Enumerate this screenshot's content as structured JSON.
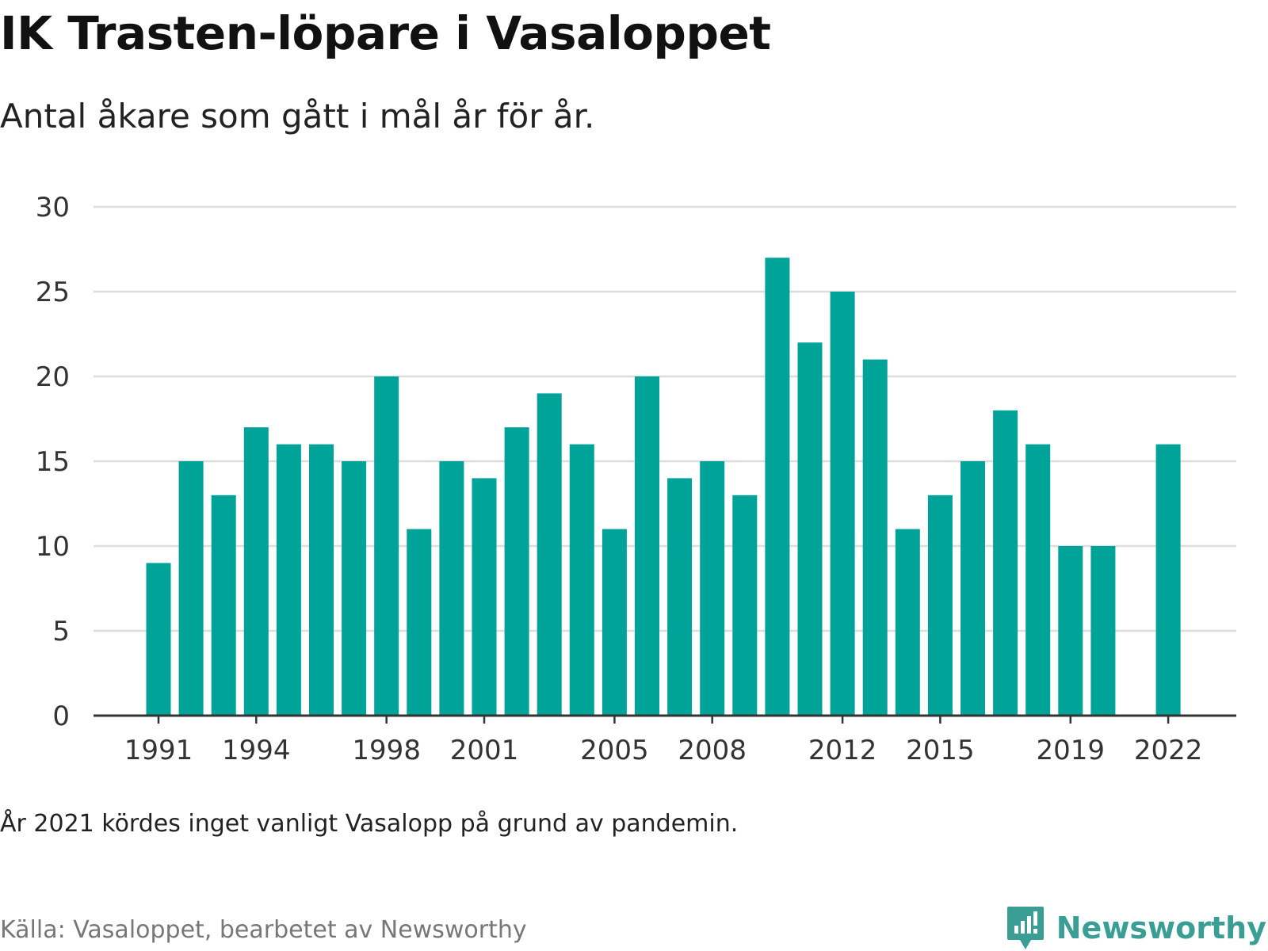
{
  "header": {
    "title": "IK Trasten-löpare i Vasaloppet",
    "subtitle": "Antal åkare som gått i mål år för år."
  },
  "footer": {
    "note": "År 2021 kördes inget vanligt Vasalopp på grund av pandemin.",
    "source": "Källa: Vasaloppet, bearbetet av Newsworthy",
    "brand": "Newsworthy",
    "brand_icon": "newsworthy-logo-icon"
  },
  "colors": {
    "bar": "#00a398",
    "grid": "#dddddd",
    "axis": "#333333",
    "brand": "#3a9e95"
  },
  "chart_data": {
    "type": "bar",
    "title": "IK Trasten-löpare i Vasaloppet",
    "subtitle": "Antal åkare som gått i mål år för år.",
    "xlabel": "",
    "ylabel": "",
    "ylim": [
      0,
      30
    ],
    "yticks": [
      0,
      5,
      10,
      15,
      20,
      25,
      30
    ],
    "xticks": [
      "1991",
      "1994",
      "1998",
      "2001",
      "2005",
      "2008",
      "2012",
      "2015",
      "2019",
      "2022"
    ],
    "grid": true,
    "legend": "none",
    "categories": [
      "1991",
      "1992",
      "1993",
      "1994",
      "1995",
      "1996",
      "1997",
      "1998",
      "1999",
      "2000",
      "2001",
      "2002",
      "2003",
      "2004",
      "2005",
      "2006",
      "2007",
      "2008",
      "2009",
      "2010",
      "2011",
      "2012",
      "2013",
      "2014",
      "2015",
      "2016",
      "2017",
      "2018",
      "2019",
      "2020",
      "2021",
      "2022"
    ],
    "values": [
      9,
      15,
      13,
      17,
      16,
      16,
      15,
      20,
      11,
      15,
      14,
      17,
      19,
      16,
      11,
      20,
      14,
      15,
      13,
      27,
      22,
      25,
      21,
      11,
      13,
      15,
      18,
      16,
      10,
      10,
      null,
      16
    ]
  }
}
